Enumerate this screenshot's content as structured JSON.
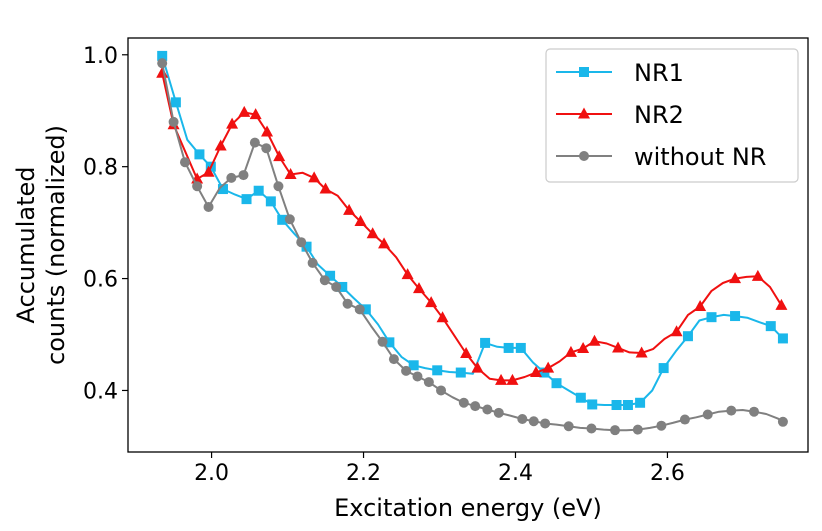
{
  "chart_data": {
    "type": "line",
    "title": "",
    "xlabel": "Excitation energy (eV)",
    "ylabel_lines": [
      "Accumulated",
      "counts (normalized)"
    ],
    "xlim": [
      1.89,
      2.785
    ],
    "ylim": [
      0.29,
      1.03
    ],
    "xticks": [
      2.0,
      2.2,
      2.4,
      2.6
    ],
    "xtick_labels": [
      "2.0",
      "2.2",
      "2.4",
      "2.6"
    ],
    "yticks": [
      0.4,
      0.6,
      0.8,
      1.0
    ],
    "ytick_labels": [
      "0.4",
      "0.6",
      "0.8",
      "1.0"
    ],
    "grid": false,
    "legend_position": "top-right",
    "series": [
      {
        "name": "NR1",
        "color": "#1ab7ea",
        "marker": "square",
        "x": [
          1.935,
          1.953,
          1.968,
          1.984,
          1.999,
          2.015,
          2.031,
          2.046,
          2.062,
          2.078,
          2.093,
          2.109,
          2.125,
          2.14,
          2.156,
          2.172,
          2.187,
          2.203,
          2.219,
          2.234,
          2.25,
          2.266,
          2.281,
          2.297,
          2.313,
          2.328,
          2.344,
          2.36,
          2.376,
          2.391,
          2.407,
          2.423,
          2.438,
          2.454,
          2.47,
          2.486,
          2.501,
          2.517,
          2.533,
          2.548,
          2.564,
          2.58,
          2.595,
          2.611,
          2.627,
          2.642,
          2.658,
          2.674,
          2.689,
          2.705,
          2.721,
          2.736,
          2.752
        ],
        "y": [
          0.998,
          0.915,
          0.848,
          0.822,
          0.8,
          0.76,
          0.75,
          0.742,
          0.757,
          0.738,
          0.705,
          0.68,
          0.657,
          0.625,
          0.605,
          0.585,
          0.565,
          0.545,
          0.518,
          0.486,
          0.46,
          0.445,
          0.44,
          0.436,
          0.433,
          0.432,
          0.43,
          0.485,
          0.478,
          0.476,
          0.476,
          0.45,
          0.432,
          0.413,
          0.4,
          0.387,
          0.375,
          0.374,
          0.374,
          0.374,
          0.378,
          0.4,
          0.44,
          0.47,
          0.497,
          0.525,
          0.531,
          0.535,
          0.533,
          0.53,
          0.522,
          0.515,
          0.493
        ],
        "marker_every": [
          0,
          1,
          3,
          4,
          5,
          7,
          8,
          9,
          10,
          12,
          14,
          15,
          17,
          19,
          21,
          23,
          25,
          27,
          29,
          30,
          32,
          33,
          35,
          36,
          38,
          39,
          40,
          42,
          44,
          46,
          48,
          51,
          52
        ]
      },
      {
        "name": "NR2",
        "color": "#f01010",
        "marker": "triangle",
        "x": [
          1.935,
          1.95,
          1.966,
          1.981,
          1.996,
          2.012,
          2.027,
          2.043,
          2.058,
          2.073,
          2.089,
          2.104,
          2.12,
          2.135,
          2.15,
          2.166,
          2.181,
          2.196,
          2.212,
          2.227,
          2.243,
          2.258,
          2.273,
          2.289,
          2.304,
          2.32,
          2.335,
          2.35,
          2.366,
          2.381,
          2.396,
          2.412,
          2.427,
          2.443,
          2.458,
          2.473,
          2.489,
          2.504,
          2.52,
          2.535,
          2.55,
          2.566,
          2.581,
          2.596,
          2.612,
          2.627,
          2.643,
          2.658,
          2.673,
          2.689,
          2.704,
          2.719,
          2.735,
          2.75
        ],
        "y": [
          0.967,
          0.875,
          0.825,
          0.778,
          0.79,
          0.837,
          0.876,
          0.897,
          0.893,
          0.862,
          0.818,
          0.786,
          0.789,
          0.78,
          0.76,
          0.748,
          0.722,
          0.702,
          0.68,
          0.662,
          0.638,
          0.607,
          0.582,
          0.557,
          0.53,
          0.497,
          0.466,
          0.44,
          0.421,
          0.418,
          0.418,
          0.424,
          0.432,
          0.44,
          0.452,
          0.468,
          0.475,
          0.488,
          0.484,
          0.476,
          0.468,
          0.467,
          0.474,
          0.492,
          0.505,
          0.535,
          0.55,
          0.578,
          0.592,
          0.6,
          0.603,
          0.604,
          0.585,
          0.552
        ],
        "marker_every": [
          0,
          1,
          3,
          4,
          5,
          6,
          7,
          8,
          9,
          10,
          11,
          13,
          14,
          16,
          17,
          18,
          19,
          21,
          22,
          23,
          24,
          26,
          27,
          29,
          30,
          32,
          33,
          35,
          36,
          37,
          39,
          41,
          44,
          46,
          49,
          51,
          53
        ]
      },
      {
        "name": "without NR",
        "color": "#808080",
        "marker": "circle",
        "x": [
          1.935,
          1.95,
          1.965,
          1.981,
          1.996,
          2.011,
          2.026,
          2.042,
          2.057,
          2.072,
          2.088,
          2.103,
          2.118,
          2.133,
          2.149,
          2.164,
          2.179,
          2.195,
          2.21,
          2.225,
          2.24,
          2.256,
          2.271,
          2.286,
          2.302,
          2.317,
          2.332,
          2.347,
          2.363,
          2.378,
          2.393,
          2.409,
          2.424,
          2.439,
          2.454,
          2.47,
          2.485,
          2.5,
          2.516,
          2.531,
          2.546,
          2.561,
          2.577,
          2.592,
          2.607,
          2.623,
          2.638,
          2.653,
          2.668,
          2.684,
          2.699,
          2.714,
          2.73,
          2.745,
          2.752
        ],
        "y": [
          0.985,
          0.88,
          0.808,
          0.765,
          0.728,
          0.762,
          0.78,
          0.785,
          0.843,
          0.833,
          0.765,
          0.706,
          0.665,
          0.628,
          0.597,
          0.585,
          0.555,
          0.545,
          0.515,
          0.487,
          0.456,
          0.435,
          0.425,
          0.415,
          0.4,
          0.388,
          0.378,
          0.372,
          0.366,
          0.36,
          0.355,
          0.349,
          0.345,
          0.341,
          0.339,
          0.336,
          0.333,
          0.332,
          0.33,
          0.329,
          0.329,
          0.33,
          0.333,
          0.337,
          0.342,
          0.348,
          0.352,
          0.357,
          0.362,
          0.364,
          0.365,
          0.362,
          0.358,
          0.35,
          0.344
        ],
        "marker_every": [
          0,
          1,
          2,
          3,
          4,
          6,
          7,
          8,
          9,
          10,
          11,
          12,
          13,
          14,
          15,
          16,
          17,
          19,
          20,
          21,
          22,
          23,
          24,
          26,
          27,
          28,
          29,
          31,
          32,
          33,
          35,
          37,
          39,
          41,
          43,
          45,
          47,
          49,
          51,
          54
        ]
      }
    ]
  }
}
